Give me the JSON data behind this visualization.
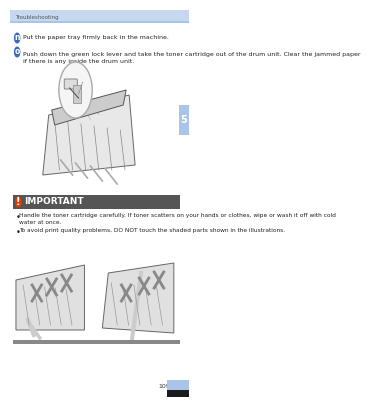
{
  "bg_color": "#ffffff",
  "header_bar_color": "#c5d8f0",
  "header_bar_color2": "#a8c4e8",
  "header_text": "Troubleshooting",
  "step_n_color": "#3a6bbf",
  "step_n_label": "n",
  "step_o_label": "o",
  "step_n_text": "Put the paper tray firmly back in the machine.",
  "step_o_text": "Push down the green lock lever and take the toner cartridge out of the drum unit. Clear the jammed paper\nif there is any inside the drum unit.",
  "side_tab_color": "#a8c4e8",
  "side_tab_number": "5",
  "important_bar_color": "#555555",
  "important_icon_color": "#e04000",
  "important_title": "IMPORTANT",
  "bullet1": "Handle the toner cartridge carefully. If toner scatters on your hands or clothes, wipe or wash it off with cold\nwater at once.",
  "bullet2": "To avoid print quality problems, DO NOT touch the shaded parts shown in the illustrations.",
  "footer_bar_color": "#888888",
  "page_number": "109",
  "page_num_bar_color": "#a8c4e8"
}
